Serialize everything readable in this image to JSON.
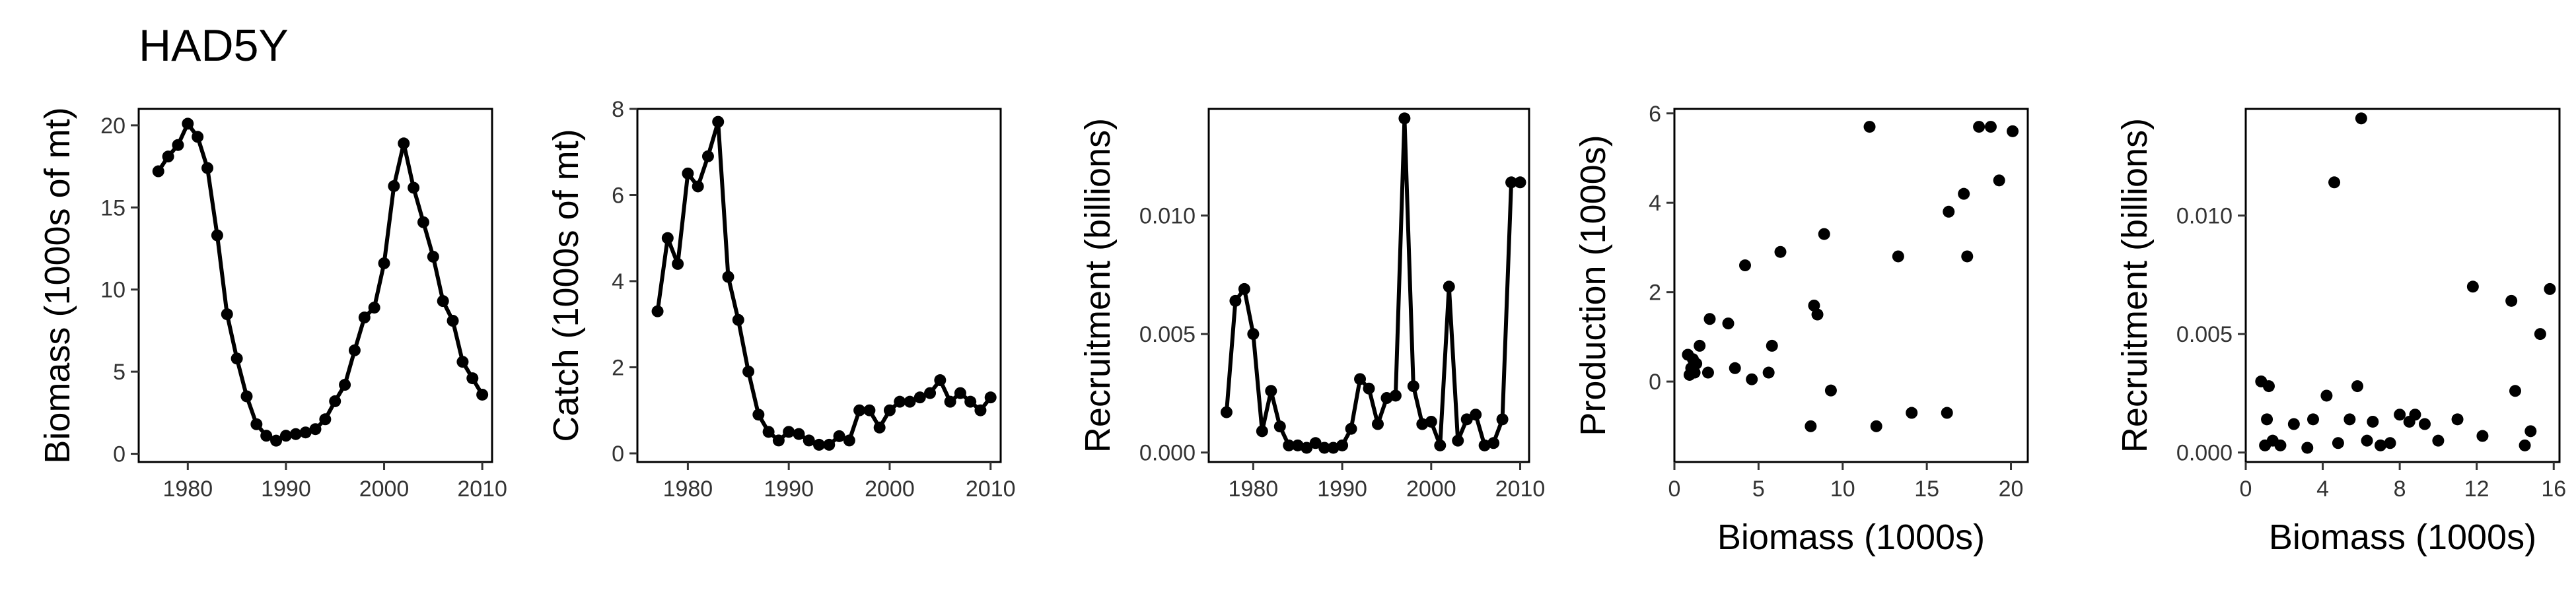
{
  "figure": {
    "title": "HAD5Y"
  },
  "chart_data": [
    {
      "type": "line",
      "xlabel": "",
      "ylabel": "Biomass (1000s of mt)",
      "xlim": [
        1975,
        2011
      ],
      "ylim": [
        -0.5,
        21
      ],
      "xticks": [
        1980,
        1990,
        2000,
        2010
      ],
      "xtick_labels": [
        "1980",
        "1990",
        "2000",
        "2010"
      ],
      "yticks": [
        0,
        5,
        10,
        15,
        20
      ],
      "ytick_labels": [
        "0",
        "5",
        "10",
        "15",
        "20"
      ],
      "grid": false,
      "series": [
        {
          "x": [
            1977,
            1978,
            1979,
            1980,
            1981,
            1982,
            1983,
            1984,
            1985,
            1986,
            1987,
            1988,
            1989,
            1990,
            1991,
            1992,
            1993,
            1994,
            1995,
            1996,
            1997,
            1998,
            1999,
            2000,
            2001,
            2002,
            2003,
            2004,
            2005,
            2006,
            2007,
            2008,
            2009,
            2010
          ],
          "y": [
            17.2,
            18.1,
            18.8,
            20.1,
            19.3,
            17.4,
            13.3,
            8.5,
            5.8,
            3.5,
            1.8,
            1.1,
            0.8,
            1.1,
            1.2,
            1.3,
            1.5,
            2.1,
            3.2,
            4.2,
            6.3,
            8.3,
            8.9,
            11.6,
            16.3,
            18.9,
            16.2,
            14.1,
            12.0,
            9.3,
            8.1,
            5.6,
            4.6,
            3.6
          ]
        }
      ]
    },
    {
      "type": "line",
      "xlabel": "",
      "ylabel": "Catch (1000s of mt)",
      "xlim": [
        1975,
        2011
      ],
      "ylim": [
        -0.2,
        8
      ],
      "xticks": [
        1980,
        1990,
        2000,
        2010
      ],
      "xtick_labels": [
        "1980",
        "1990",
        "2000",
        "2010"
      ],
      "yticks": [
        0,
        2,
        4,
        6,
        8
      ],
      "ytick_labels": [
        "0",
        "2",
        "4",
        "6",
        "8"
      ],
      "grid": false,
      "series": [
        {
          "x": [
            1977,
            1978,
            1979,
            1980,
            1981,
            1982,
            1983,
            1984,
            1985,
            1986,
            1987,
            1988,
            1989,
            1990,
            1991,
            1992,
            1993,
            1994,
            1995,
            1996,
            1997,
            1998,
            1999,
            2000,
            2001,
            2002,
            2003,
            2004,
            2005,
            2006,
            2007,
            2008,
            2009,
            2010
          ],
          "y": [
            3.3,
            5.0,
            4.4,
            6.5,
            6.2,
            6.9,
            7.7,
            4.1,
            3.1,
            1.9,
            0.9,
            0.5,
            0.3,
            0.5,
            0.45,
            0.3,
            0.2,
            0.2,
            0.4,
            0.3,
            1.0,
            1.0,
            0.6,
            1.0,
            1.2,
            1.2,
            1.3,
            1.4,
            1.7,
            1.2,
            1.4,
            1.2,
            1.0,
            1.3
          ]
        }
      ]
    },
    {
      "type": "line",
      "xlabel": "",
      "ylabel": "Recruitment (billions)",
      "xlim": [
        1975,
        2011
      ],
      "ylim": [
        -0.0004,
        0.0145
      ],
      "xticks": [
        1980,
        1990,
        2000,
        2010
      ],
      "xtick_labels": [
        "1980",
        "1990",
        "2000",
        "2010"
      ],
      "yticks": [
        0,
        0.005,
        0.01
      ],
      "ytick_labels": [
        "0.000",
        "0.005",
        "0.010"
      ],
      "grid": false,
      "series": [
        {
          "x": [
            1977,
            1978,
            1979,
            1980,
            1981,
            1982,
            1983,
            1984,
            1985,
            1986,
            1987,
            1988,
            1989,
            1990,
            1991,
            1992,
            1993,
            1994,
            1995,
            1996,
            1997,
            1998,
            1999,
            2000,
            2001,
            2002,
            2003,
            2004,
            2005,
            2006,
            2007,
            2008,
            2009,
            2010
          ],
          "y": [
            0.0017,
            0.0064,
            0.0069,
            0.005,
            0.0009,
            0.0026,
            0.0011,
            0.0003,
            0.0003,
            0.0002,
            0.0004,
            0.0002,
            0.0002,
            0.0003,
            0.001,
            0.0031,
            0.0027,
            0.0012,
            0.0023,
            0.0024,
            0.0141,
            0.0028,
            0.0012,
            0.0013,
            0.0003,
            0.007,
            0.0005,
            0.0014,
            0.0016,
            0.0003,
            0.0004,
            0.0014,
            0.0114,
            0.0114
          ]
        }
      ]
    },
    {
      "type": "scatter",
      "xlabel": "Biomass (1000s)",
      "ylabel": "Production (1000s)",
      "xlim": [
        0,
        21
      ],
      "ylim": [
        -1.8,
        6.1
      ],
      "xticks": [
        0,
        5,
        10,
        15,
        20
      ],
      "xtick_labels": [
        "0",
        "5",
        "10",
        "15",
        "20"
      ],
      "yticks": [
        0,
        2,
        4,
        6
      ],
      "ytick_labels": [
        "0",
        "2",
        "4",
        "6"
      ],
      "grid": false,
      "series": [
        {
          "x": [
            0.8,
            1.1,
            1.2,
            1.3,
            1.5,
            2.1,
            3.2,
            3.6,
            4.2,
            4.6,
            5.6,
            6.3,
            8.1,
            8.3,
            8.5,
            8.9,
            9.3,
            11.6,
            12.0,
            13.3,
            14.1,
            16.2,
            16.3,
            17.2,
            17.4,
            18.1,
            18.8,
            19.3,
            20.1,
            1.0,
            5.8,
            0.9,
            2.0
          ],
          "y": [
            0.6,
            0.5,
            0.2,
            0.4,
            0.8,
            1.4,
            1.3,
            0.3,
            2.6,
            0.05,
            0.2,
            2.9,
            -1.0,
            1.7,
            1.5,
            3.3,
            -0.2,
            5.7,
            -1.0,
            2.8,
            -0.7,
            -0.7,
            3.8,
            4.2,
            2.8,
            5.7,
            5.7,
            4.5,
            5.6,
            0.3,
            0.8,
            0.15,
            0.2
          ]
        }
      ]
    },
    {
      "type": "scatter",
      "xlabel": "Biomass (1000s)",
      "ylabel": "Recruitment (billions)",
      "xlim": [
        0,
        16.3
      ],
      "ylim": [
        -0.0004,
        0.0145
      ],
      "xticks": [
        0,
        4,
        8,
        12,
        16
      ],
      "xtick_labels": [
        "0",
        "4",
        "8",
        "12",
        "16"
      ],
      "yticks": [
        0,
        0.005,
        0.01
      ],
      "ytick_labels": [
        "0.000",
        "0.005",
        "0.010"
      ],
      "grid": false,
      "series": [
        {
          "x": [
            0.8,
            1.0,
            1.1,
            1.2,
            1.4,
            1.8,
            2.5,
            3.2,
            3.5,
            4.2,
            4.6,
            4.8,
            5.4,
            5.8,
            6.0,
            6.3,
            6.6,
            7.0,
            7.5,
            8.0,
            8.5,
            8.8,
            9.3,
            10.0,
            11.0,
            11.8,
            12.3,
            13.8,
            14.0,
            14.5,
            14.8,
            15.3,
            15.8
          ],
          "y": [
            0.003,
            0.0003,
            0.0014,
            0.0028,
            0.0005,
            0.0003,
            0.0012,
            0.0002,
            0.0014,
            0.0024,
            0.0114,
            0.0004,
            0.0014,
            0.0028,
            0.0141,
            0.0005,
            0.0013,
            0.0003,
            0.0004,
            0.0016,
            0.0013,
            0.0016,
            0.0012,
            0.0005,
            0.0014,
            0.007,
            0.0007,
            0.0064,
            0.0026,
            0.0003,
            0.0009,
            0.005,
            0.0069
          ]
        }
      ]
    }
  ]
}
